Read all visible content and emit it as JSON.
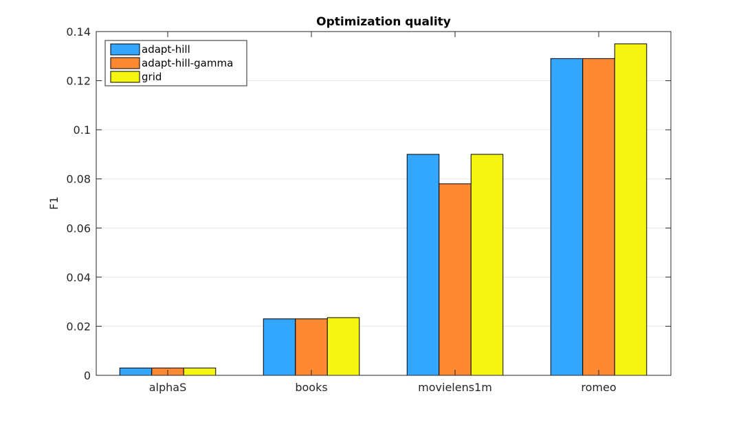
{
  "chart_data": {
    "type": "bar",
    "title": "Optimization quality",
    "xlabel": "",
    "ylabel": "F1",
    "categories": [
      "alphaS",
      "books",
      "movielens1m",
      "romeo"
    ],
    "series": [
      {
        "name": "adapt-hill",
        "color": "#33a6ff",
        "values": [
          0.003,
          0.023,
          0.09,
          0.129
        ]
      },
      {
        "name": "adapt-hill-gamma",
        "color": "#ff8833",
        "values": [
          0.003,
          0.023,
          0.078,
          0.129
        ]
      },
      {
        "name": "grid",
        "color": "#f5f50f",
        "values": [
          0.003,
          0.0235,
          0.09,
          0.135
        ]
      }
    ],
    "ylim": [
      0,
      0.14
    ],
    "yticks": [
      "0",
      "0.02",
      "0.04",
      "0.06",
      "0.08",
      "0.1",
      "0.12",
      "0.14"
    ],
    "grid": "horizontal",
    "legend_position": "top-left"
  }
}
